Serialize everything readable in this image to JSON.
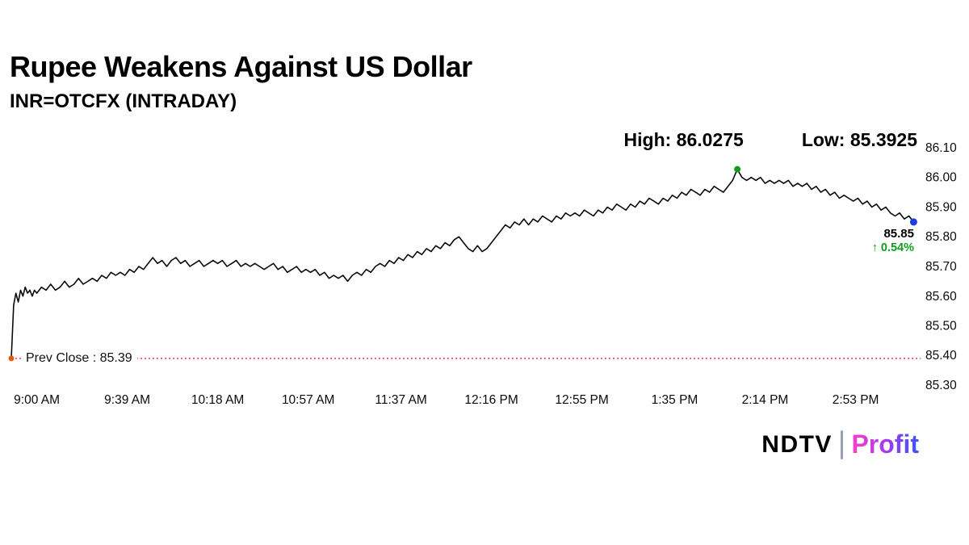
{
  "header": {
    "title": "Rupee Weakens Against US Dollar",
    "subtitle": "INR=OTCFX (INTRADAY)"
  },
  "annotations": {
    "high_label": "High: 86.0275",
    "low_label": "Low: 85.3925",
    "prev_close_label": "Prev Close : 85.39",
    "last_price": "85.85",
    "change": "↑ 0.54%"
  },
  "footer": {
    "logo_primary": "NDTV",
    "logo_secondary": "Profit"
  },
  "colors": {
    "line": "#0b0b0b",
    "prev_close_line": "#e01020",
    "prev_close_dot": "#e8590c",
    "high_dot": "#12991c",
    "last_dot": "#1f3de0",
    "change_text": "#0f9d1f",
    "profit_gradient": [
      "#ff3fc8",
      "#a839f0",
      "#3b55f6"
    ]
  },
  "chart_data": {
    "type": "line",
    "title": "Rupee Weakens Against US Dollar",
    "subtitle": "INR=OTCFX (INTRADAY)",
    "high": 86.0275,
    "low": 85.3925,
    "prev_close": 85.39,
    "last": 85.85,
    "change_pct": "+0.54%",
    "grid": false,
    "legend": "none",
    "ylim": [
      85.3,
      86.1
    ],
    "y_ticks": [
      "86.10",
      "86.00",
      "85.90",
      "85.80",
      "85.70",
      "85.60",
      "85.50",
      "85.40",
      "85.30"
    ],
    "x_unit": "minutes from 9:00 AM",
    "x_ticks": [
      {
        "m": 0,
        "label": "9:00 AM"
      },
      {
        "m": 39,
        "label": "9:39 AM"
      },
      {
        "m": 78,
        "label": "10:18 AM"
      },
      {
        "m": 117,
        "label": "10:57 AM"
      },
      {
        "m": 157,
        "label": "11:37 AM"
      },
      {
        "m": 196,
        "label": "12:16 PM"
      },
      {
        "m": 235,
        "label": "12:55 PM"
      },
      {
        "m": 275,
        "label": "1:35 PM"
      },
      {
        "m": 314,
        "label": "2:14 PM"
      },
      {
        "m": 353,
        "label": "2:53 PM"
      }
    ],
    "series": [
      {
        "name": "INR=OTCFX",
        "points": [
          [
            -11,
            85.39
          ],
          [
            -10,
            85.57
          ],
          [
            -9,
            85.61
          ],
          [
            -8,
            85.58
          ],
          [
            -7,
            85.62
          ],
          [
            -6,
            85.6
          ],
          [
            -5,
            85.63
          ],
          [
            -4,
            85.61
          ],
          [
            -3,
            85.62
          ],
          [
            -2,
            85.6
          ],
          [
            -1,
            85.62
          ],
          [
            0,
            85.61
          ],
          [
            2,
            85.63
          ],
          [
            4,
            85.62
          ],
          [
            6,
            85.64
          ],
          [
            8,
            85.62
          ],
          [
            10,
            85.63
          ],
          [
            12,
            85.65
          ],
          [
            14,
            85.63
          ],
          [
            16,
            85.64
          ],
          [
            18,
            85.66
          ],
          [
            20,
            85.64
          ],
          [
            22,
            85.65
          ],
          [
            24,
            85.66
          ],
          [
            26,
            85.65
          ],
          [
            28,
            85.67
          ],
          [
            30,
            85.66
          ],
          [
            32,
            85.68
          ],
          [
            34,
            85.67
          ],
          [
            36,
            85.68
          ],
          [
            38,
            85.67
          ],
          [
            40,
            85.69
          ],
          [
            42,
            85.68
          ],
          [
            44,
            85.7
          ],
          [
            46,
            85.69
          ],
          [
            48,
            85.71
          ],
          [
            50,
            85.73
          ],
          [
            52,
            85.71
          ],
          [
            54,
            85.72
          ],
          [
            56,
            85.7
          ],
          [
            58,
            85.72
          ],
          [
            60,
            85.73
          ],
          [
            62,
            85.71
          ],
          [
            64,
            85.72
          ],
          [
            66,
            85.7
          ],
          [
            68,
            85.71
          ],
          [
            70,
            85.72
          ],
          [
            72,
            85.7
          ],
          [
            74,
            85.71
          ],
          [
            76,
            85.72
          ],
          [
            78,
            85.71
          ],
          [
            80,
            85.72
          ],
          [
            82,
            85.7
          ],
          [
            84,
            85.71
          ],
          [
            86,
            85.72
          ],
          [
            88,
            85.7
          ],
          [
            90,
            85.71
          ],
          [
            92,
            85.7
          ],
          [
            94,
            85.71
          ],
          [
            96,
            85.7
          ],
          [
            98,
            85.69
          ],
          [
            100,
            85.7
          ],
          [
            102,
            85.71
          ],
          [
            104,
            85.69
          ],
          [
            106,
            85.7
          ],
          [
            108,
            85.68
          ],
          [
            110,
            85.69
          ],
          [
            112,
            85.7
          ],
          [
            114,
            85.68
          ],
          [
            116,
            85.69
          ],
          [
            118,
            85.68
          ],
          [
            120,
            85.69
          ],
          [
            122,
            85.67
          ],
          [
            124,
            85.68
          ],
          [
            126,
            85.66
          ],
          [
            128,
            85.67
          ],
          [
            130,
            85.66
          ],
          [
            132,
            85.67
          ],
          [
            134,
            85.65
          ],
          [
            136,
            85.67
          ],
          [
            138,
            85.68
          ],
          [
            140,
            85.67
          ],
          [
            142,
            85.69
          ],
          [
            144,
            85.68
          ],
          [
            146,
            85.7
          ],
          [
            148,
            85.71
          ],
          [
            150,
            85.7
          ],
          [
            152,
            85.72
          ],
          [
            154,
            85.71
          ],
          [
            156,
            85.73
          ],
          [
            158,
            85.72
          ],
          [
            160,
            85.74
          ],
          [
            162,
            85.73
          ],
          [
            164,
            85.75
          ],
          [
            166,
            85.74
          ],
          [
            168,
            85.76
          ],
          [
            170,
            85.75
          ],
          [
            172,
            85.77
          ],
          [
            174,
            85.76
          ],
          [
            176,
            85.78
          ],
          [
            178,
            85.77
          ],
          [
            180,
            85.79
          ],
          [
            182,
            85.8
          ],
          [
            184,
            85.78
          ],
          [
            186,
            85.76
          ],
          [
            188,
            85.75
          ],
          [
            190,
            85.77
          ],
          [
            192,
            85.75
          ],
          [
            194,
            85.76
          ],
          [
            196,
            85.78
          ],
          [
            198,
            85.8
          ],
          [
            200,
            85.82
          ],
          [
            202,
            85.84
          ],
          [
            204,
            85.83
          ],
          [
            206,
            85.85
          ],
          [
            208,
            85.84
          ],
          [
            210,
            85.86
          ],
          [
            212,
            85.84
          ],
          [
            214,
            85.86
          ],
          [
            216,
            85.85
          ],
          [
            218,
            85.87
          ],
          [
            220,
            85.86
          ],
          [
            222,
            85.85
          ],
          [
            224,
            85.87
          ],
          [
            226,
            85.86
          ],
          [
            228,
            85.88
          ],
          [
            230,
            85.87
          ],
          [
            232,
            85.88
          ],
          [
            234,
            85.87
          ],
          [
            236,
            85.89
          ],
          [
            238,
            85.88
          ],
          [
            240,
            85.87
          ],
          [
            242,
            85.89
          ],
          [
            244,
            85.88
          ],
          [
            246,
            85.9
          ],
          [
            248,
            85.89
          ],
          [
            250,
            85.91
          ],
          [
            252,
            85.9
          ],
          [
            254,
            85.89
          ],
          [
            256,
            85.91
          ],
          [
            258,
            85.9
          ],
          [
            260,
            85.92
          ],
          [
            262,
            85.91
          ],
          [
            264,
            85.93
          ],
          [
            266,
            85.92
          ],
          [
            268,
            85.91
          ],
          [
            270,
            85.93
          ],
          [
            272,
            85.92
          ],
          [
            274,
            85.94
          ],
          [
            276,
            85.93
          ],
          [
            278,
            85.95
          ],
          [
            280,
            85.94
          ],
          [
            282,
            85.96
          ],
          [
            284,
            85.95
          ],
          [
            286,
            85.94
          ],
          [
            288,
            85.96
          ],
          [
            290,
            85.95
          ],
          [
            292,
            85.97
          ],
          [
            294,
            85.96
          ],
          [
            296,
            85.95
          ],
          [
            298,
            85.97
          ],
          [
            300,
            85.99
          ],
          [
            302,
            86.0275
          ],
          [
            304,
            86.0
          ],
          [
            306,
            85.99
          ],
          [
            308,
            86.0
          ],
          [
            310,
            85.99
          ],
          [
            312,
            86.0
          ],
          [
            314,
            85.98
          ],
          [
            316,
            85.99
          ],
          [
            318,
            85.98
          ],
          [
            320,
            85.99
          ],
          [
            322,
            85.98
          ],
          [
            324,
            85.99
          ],
          [
            326,
            85.97
          ],
          [
            328,
            85.98
          ],
          [
            330,
            85.97
          ],
          [
            332,
            85.98
          ],
          [
            334,
            85.96
          ],
          [
            336,
            85.97
          ],
          [
            338,
            85.95
          ],
          [
            340,
            85.96
          ],
          [
            342,
            85.94
          ],
          [
            344,
            85.95
          ],
          [
            346,
            85.93
          ],
          [
            348,
            85.94
          ],
          [
            350,
            85.93
          ],
          [
            352,
            85.92
          ],
          [
            354,
            85.93
          ],
          [
            356,
            85.91
          ],
          [
            358,
            85.92
          ],
          [
            360,
            85.9
          ],
          [
            362,
            85.91
          ],
          [
            364,
            85.89
          ],
          [
            366,
            85.9
          ],
          [
            368,
            85.88
          ],
          [
            370,
            85.87
          ],
          [
            372,
            85.88
          ],
          [
            374,
            85.86
          ],
          [
            376,
            85.87
          ],
          [
            378,
            85.85
          ]
        ]
      }
    ]
  }
}
